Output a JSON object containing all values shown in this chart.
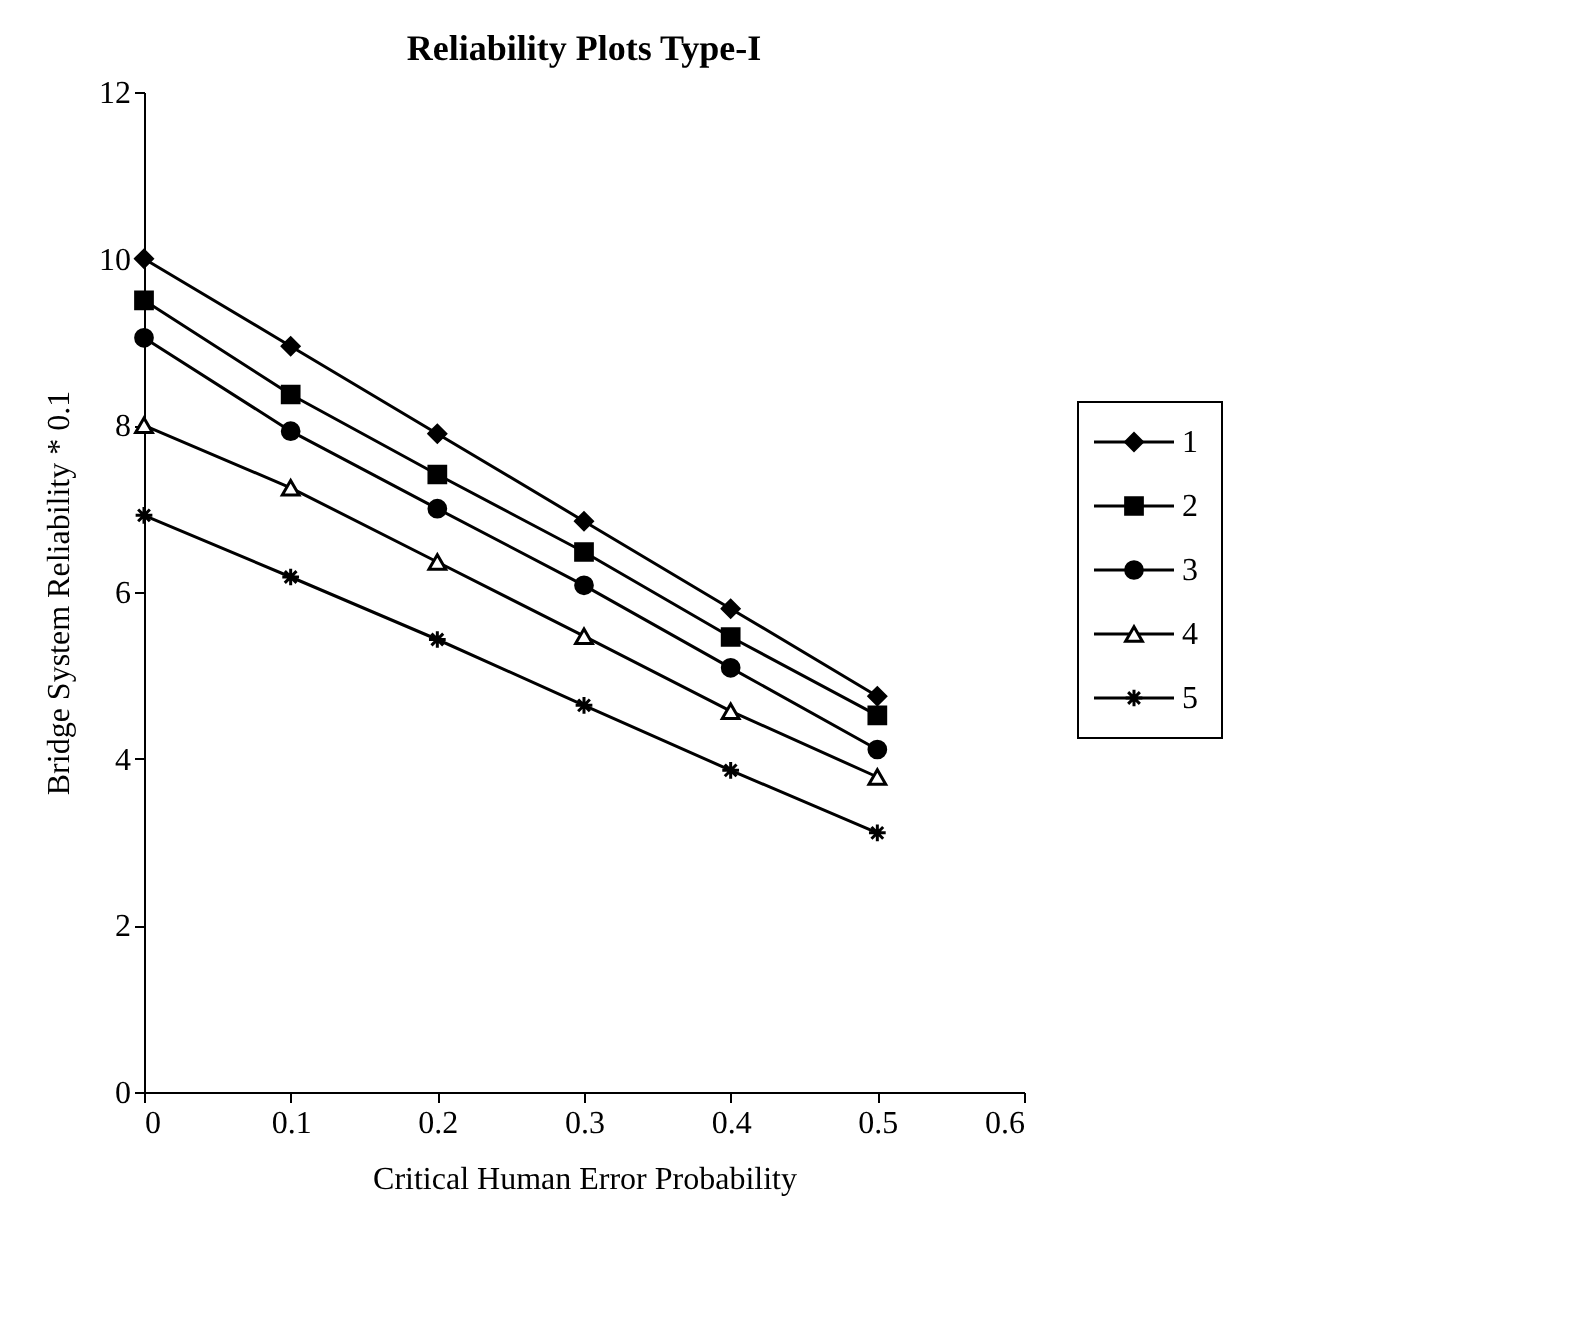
{
  "chart_data": {
    "type": "line",
    "title": "Reliability Plots Type-I",
    "xlabel": "Critical Human Error Probability",
    "ylabel": "Bridge System Reliability * 0.1",
    "x": [
      0,
      0.1,
      0.2,
      0.3,
      0.4,
      0.5
    ],
    "series": [
      {
        "name": "1",
        "color": "#000000",
        "marker": "diamond",
        "values": [
          10.0,
          8.95,
          7.9,
          6.85,
          5.8,
          4.75
        ]
      },
      {
        "name": "2",
        "color": "#000000",
        "marker": "square",
        "values": [
          9.5,
          8.37,
          7.41,
          6.48,
          5.46,
          4.52
        ]
      },
      {
        "name": "3",
        "color": "#000000",
        "marker": "circle",
        "values": [
          9.05,
          7.93,
          7.0,
          6.08,
          5.09,
          4.11
        ]
      },
      {
        "name": "4",
        "color": "#000000",
        "marker": "triangle",
        "values": [
          8.0,
          7.25,
          6.36,
          5.47,
          4.57,
          3.78
        ]
      },
      {
        "name": "5",
        "color": "#000000",
        "marker": "cross",
        "values": [
          6.92,
          6.18,
          5.43,
          4.64,
          3.86,
          3.11
        ]
      }
    ],
    "xlim": [
      0,
      0.6
    ],
    "xticks": [
      0,
      0.1,
      0.2,
      0.3,
      0.4,
      0.5,
      0.6
    ],
    "ylim": [
      0,
      12
    ],
    "yticks": [
      0,
      2,
      4,
      6,
      8,
      10,
      12
    ],
    "grid": false,
    "legend": "right",
    "line_style": "solid"
  }
}
